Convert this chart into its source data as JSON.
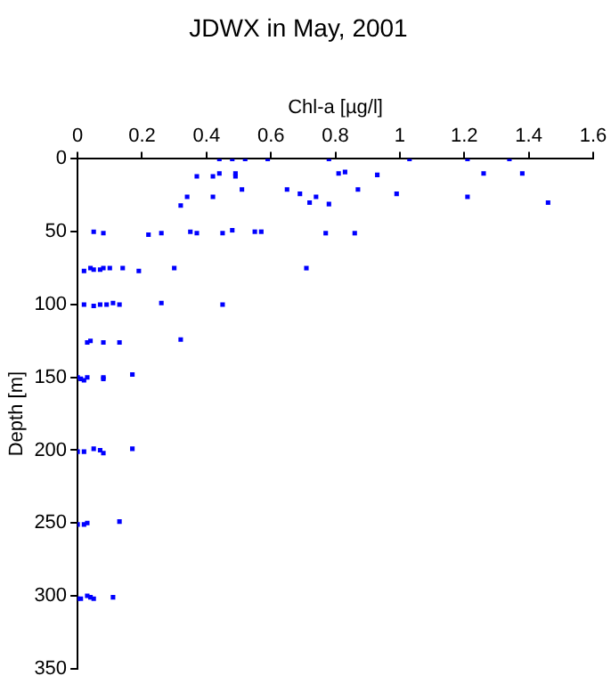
{
  "chart_data": {
    "type": "scatter",
    "title": "JDWX in May, 2001",
    "xlabel": "Chl-a [µg/l]",
    "ylabel": "Depth [m]",
    "xlim": [
      0,
      1.6
    ],
    "xticks": [
      0,
      0.2,
      0.4,
      0.6,
      0.8,
      1,
      1.2,
      1.4,
      1.6
    ],
    "ylim": [
      350,
      0
    ],
    "yticks": [
      0,
      50,
      100,
      150,
      200,
      250,
      300,
      350
    ],
    "grid": false,
    "legend": false,
    "marker": "square",
    "series": [
      {
        "color": "#0000ff",
        "x": [
          0.44,
          0.48,
          0.52,
          0.59,
          0.78,
          1.03,
          1.21,
          1.34,
          0.42,
          0.37,
          0.44,
          0.49,
          0.49,
          0.81,
          0.83,
          0.93,
          1.26,
          1.38,
          0.34,
          0.32,
          0.42,
          0.51,
          0.65,
          0.69,
          0.72,
          0.74,
          0.78,
          0.87,
          0.99,
          1.21,
          1.46,
          0.05,
          0.08,
          0.22,
          0.26,
          0.35,
          0.37,
          0.45,
          0.48,
          0.55,
          0.57,
          0.77,
          0.86,
          0.02,
          0.04,
          0.05,
          0.07,
          0.08,
          0.1,
          0.14,
          0.19,
          0.3,
          0.71,
          0.02,
          0.05,
          0.07,
          0.09,
          0.11,
          0.13,
          0.26,
          0.45,
          0.03,
          0.04,
          0.08,
          0.13,
          0.32,
          0,
          0.01,
          0.02,
          0.03,
          0.08,
          0.08,
          0.17,
          0,
          0.02,
          0.05,
          0.07,
          0.08,
          0.17,
          0,
          0.02,
          0.03,
          0.13,
          0,
          0.01,
          0.03,
          0.04,
          0.05,
          0.11
        ],
        "values": [
          0,
          0,
          0,
          0,
          0,
          0,
          0,
          0,
          12,
          12,
          10,
          10,
          12,
          10,
          9,
          11,
          10,
          10,
          26,
          32,
          26,
          21,
          21,
          24,
          30,
          26,
          31,
          21,
          24,
          26,
          30,
          50,
          51,
          52,
          51,
          50,
          51,
          51,
          49,
          50,
          50,
          51,
          51,
          77,
          75,
          76,
          76,
          75,
          75,
          75,
          77,
          75,
          75,
          100,
          101,
          100,
          100,
          99,
          100,
          99,
          100,
          126,
          125,
          126,
          126,
          124,
          150,
          151,
          152,
          150,
          151,
          150,
          148,
          201,
          201,
          199,
          200,
          202,
          199,
          251,
          251,
          250,
          249,
          302,
          302,
          300,
          301,
          302,
          301
        ]
      }
    ]
  }
}
